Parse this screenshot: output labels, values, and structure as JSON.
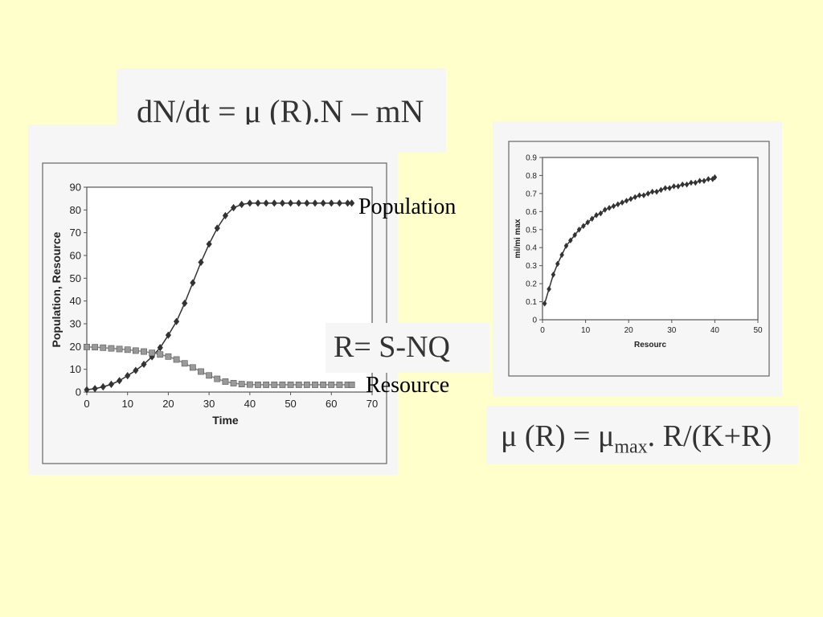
{
  "equations": {
    "growth": "dN/dt = μ (R).N – mN",
    "resource": "R= S-NQ",
    "monod_prefix": "μ (R) = μ",
    "monod_sub": "max",
    "monod_suffix": ". R/(K+R)"
  },
  "annotations": {
    "population": "Population",
    "resource": "Resource"
  },
  "chart_data": [
    {
      "type": "line",
      "title": "",
      "xlabel": "Time",
      "ylabel": "Population, Resource",
      "xlim": [
        0,
        70
      ],
      "ylim": [
        0,
        90
      ],
      "xticks": [
        "0",
        "10",
        "20",
        "30",
        "40",
        "50",
        "60",
        "70"
      ],
      "yticks": [
        "0",
        "10",
        "20",
        "30",
        "40",
        "50",
        "60",
        "70",
        "80",
        "90"
      ],
      "grid": false,
      "series": [
        {
          "name": "Population",
          "marker": "diamond",
          "color": "#333333",
          "x": [
            0,
            2,
            4,
            6,
            8,
            10,
            12,
            14,
            16,
            18,
            20,
            22,
            24,
            26,
            28,
            30,
            32,
            34,
            36,
            38,
            40,
            42,
            44,
            46,
            48,
            50,
            52,
            54,
            56,
            58,
            60,
            62,
            64,
            65
          ],
          "values": [
            1,
            1.5,
            2.3,
            3.4,
            5,
            7.2,
            9.5,
            12.2,
            15.5,
            19.5,
            25,
            31,
            39,
            48,
            57,
            65,
            72,
            77.5,
            81,
            82.4,
            83,
            83,
            83,
            83,
            83,
            83,
            83,
            83,
            83,
            83,
            83,
            83,
            83,
            83
          ]
        },
        {
          "name": "Resource",
          "marker": "square",
          "color": "#888888",
          "x": [
            0,
            2,
            4,
            6,
            8,
            10,
            12,
            14,
            16,
            18,
            20,
            22,
            24,
            26,
            28,
            30,
            32,
            34,
            36,
            38,
            40,
            42,
            44,
            46,
            48,
            50,
            52,
            54,
            56,
            58,
            60,
            62,
            64,
            65
          ],
          "values": [
            19.8,
            19.7,
            19.5,
            19.2,
            18.9,
            18.6,
            18.2,
            17.8,
            17.2,
            16.5,
            15.6,
            14.3,
            12.6,
            10.8,
            9,
            7.3,
            5.8,
            4.6,
            3.9,
            3.5,
            3.3,
            3.2,
            3.2,
            3.2,
            3.2,
            3.2,
            3.2,
            3.2,
            3.2,
            3.2,
            3.2,
            3.2,
            3.2,
            3.2
          ]
        }
      ]
    },
    {
      "type": "line",
      "title": "",
      "xlabel": "Resourc",
      "ylabel": "mi/mi max",
      "xlim": [
        0,
        50
      ],
      "ylim": [
        0,
        0.9
      ],
      "xticks": [
        "0",
        "10",
        "20",
        "30",
        "40",
        "50"
      ],
      "yticks": [
        "0",
        "0.1",
        "0.2",
        "0.3",
        "0.4",
        "0.5",
        "0.6",
        "0.7",
        "0.8",
        "0.9"
      ],
      "grid": false,
      "series": [
        {
          "marker": "diamond",
          "color": "#333333",
          "x": [
            0.5,
            1.5,
            2.5,
            3.5,
            4.5,
            5.5,
            6.5,
            7.5,
            8.5,
            9.5,
            10.5,
            11.5,
            12.5,
            13.5,
            14.5,
            15.5,
            16.5,
            17.5,
            18.5,
            19.5,
            20.5,
            21.5,
            22.5,
            23.5,
            24.5,
            25.5,
            26.5,
            27.5,
            28.5,
            29.5,
            30.5,
            31.5,
            32.5,
            33.5,
            34.5,
            35.5,
            36.5,
            37.5,
            38.5,
            39.5,
            40
          ],
          "values": [
            0.09,
            0.17,
            0.25,
            0.31,
            0.36,
            0.41,
            0.44,
            0.47,
            0.5,
            0.52,
            0.54,
            0.56,
            0.58,
            0.59,
            0.61,
            0.62,
            0.63,
            0.64,
            0.65,
            0.66,
            0.67,
            0.68,
            0.69,
            0.69,
            0.7,
            0.71,
            0.71,
            0.72,
            0.73,
            0.73,
            0.74,
            0.74,
            0.75,
            0.75,
            0.76,
            0.76,
            0.77,
            0.77,
            0.78,
            0.78,
            0.79
          ]
        }
      ]
    }
  ]
}
